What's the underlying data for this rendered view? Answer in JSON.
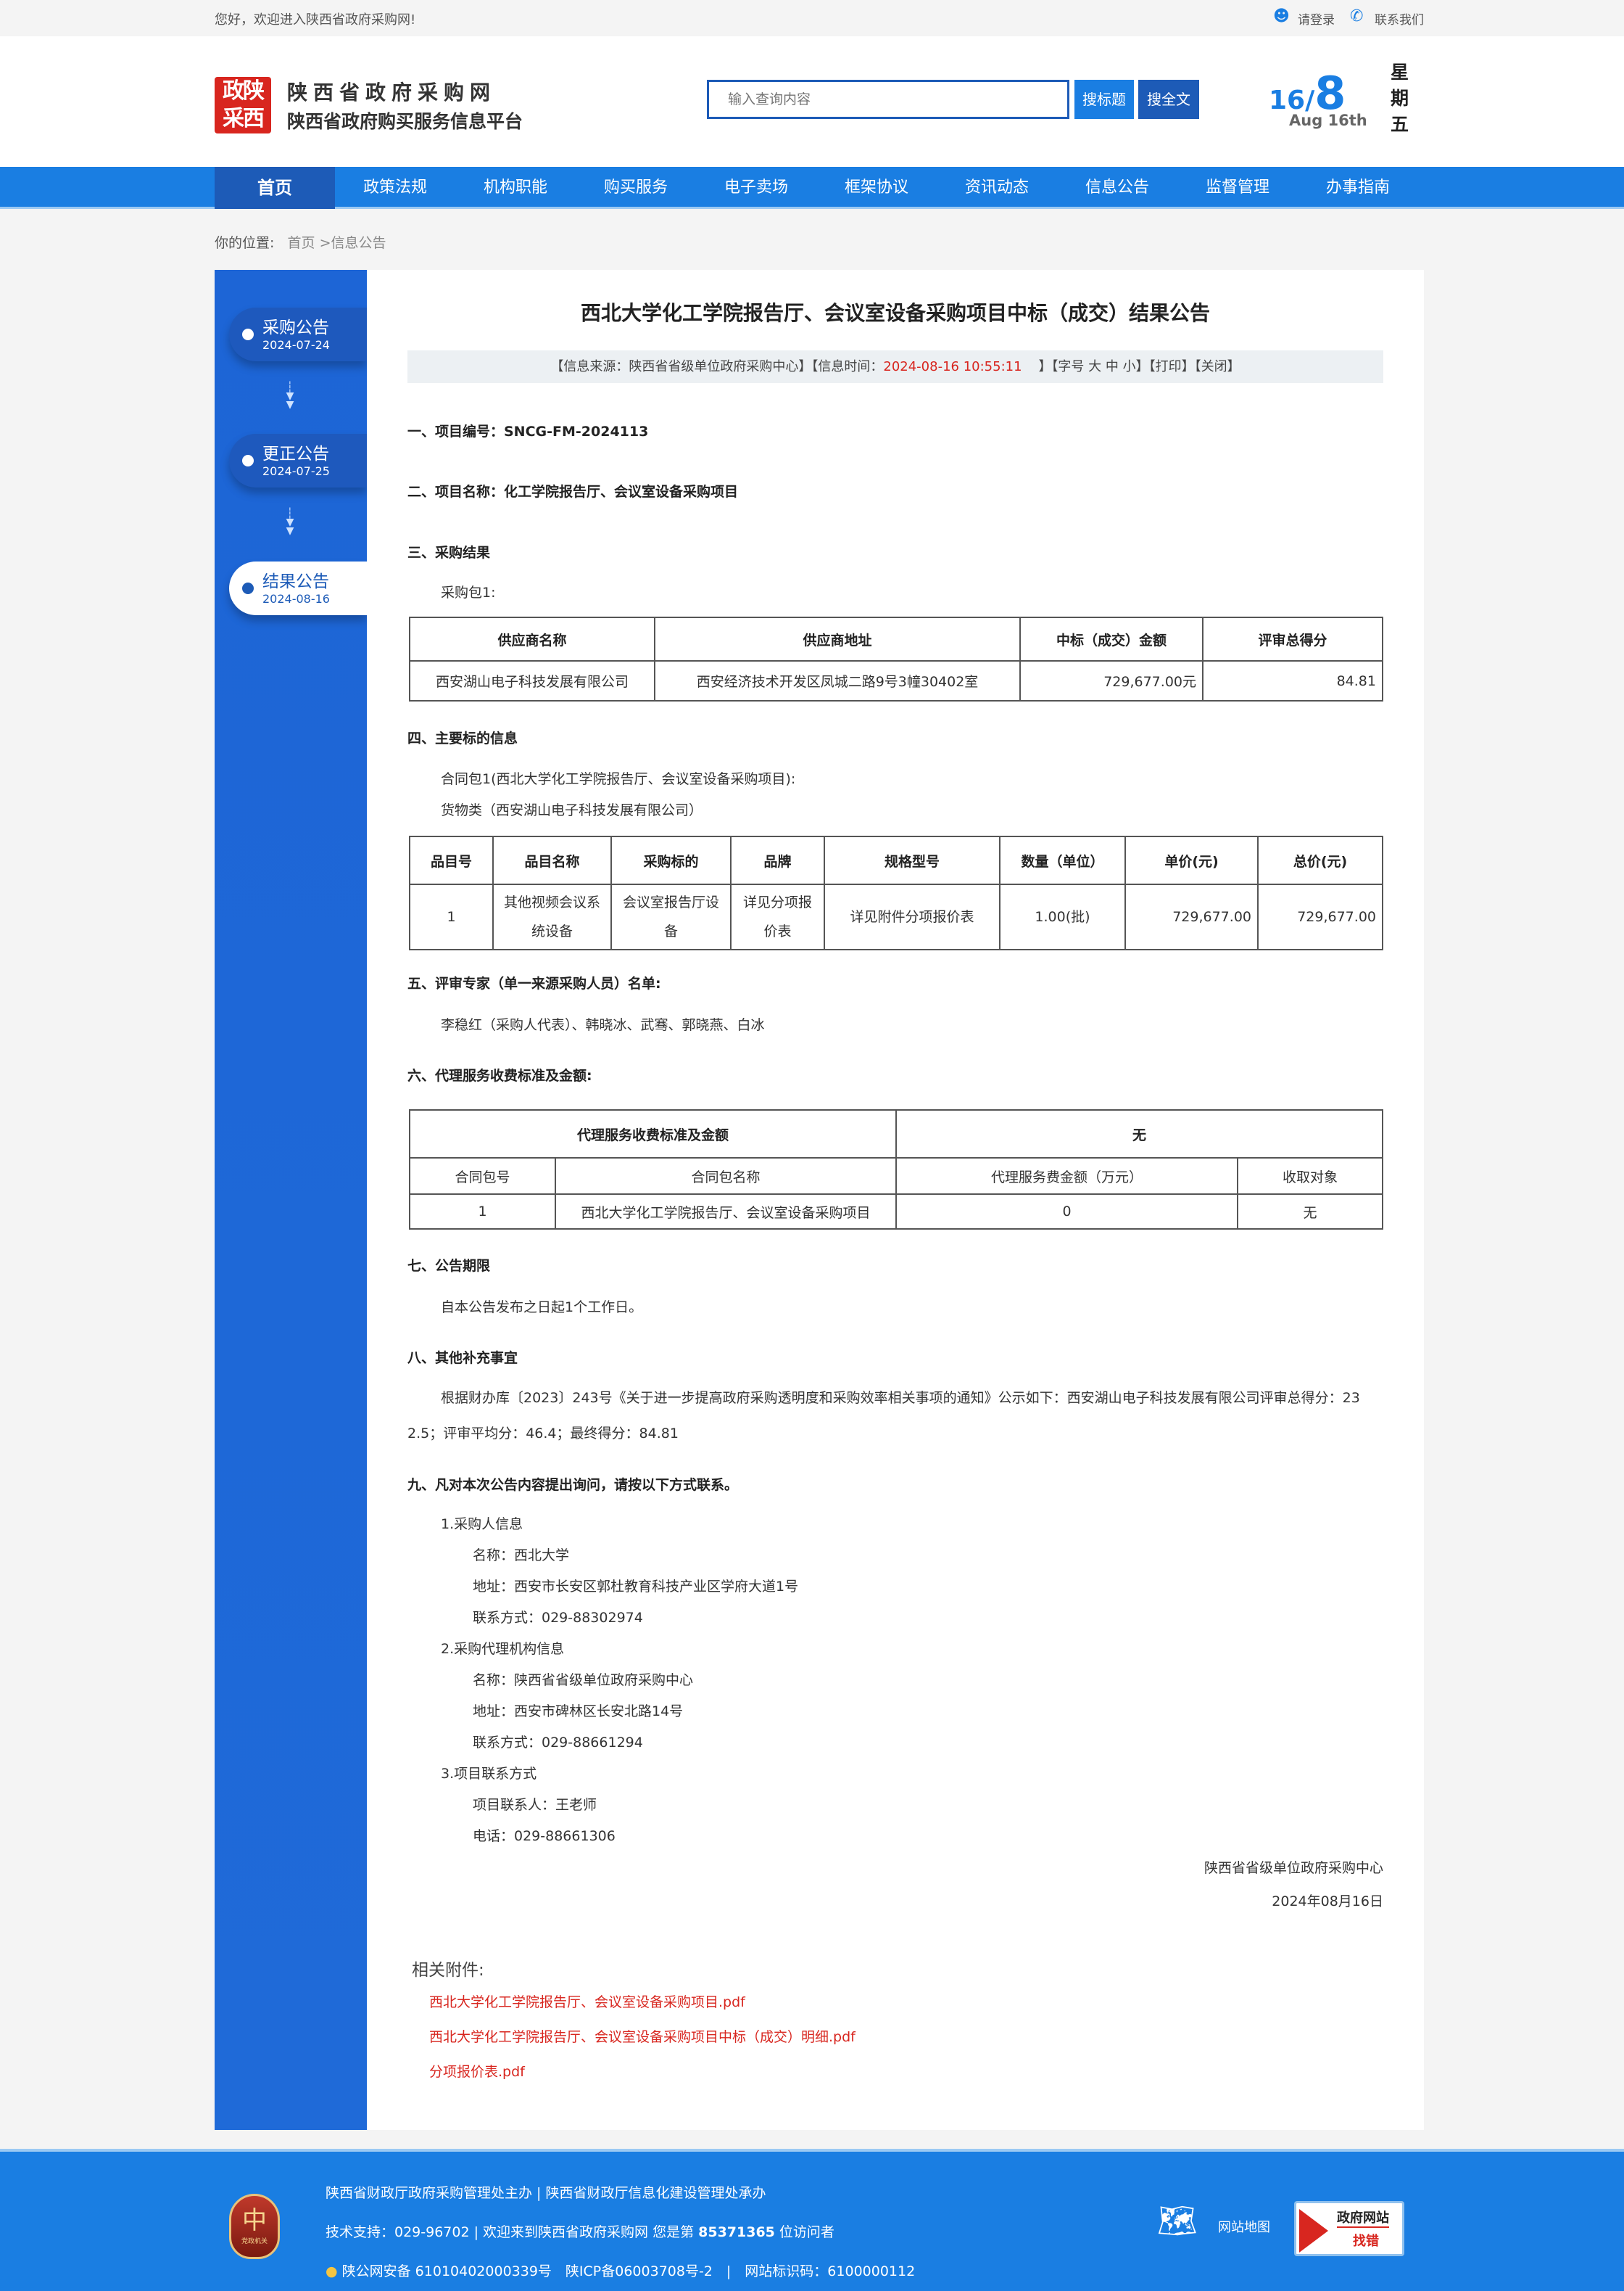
{
  "topbar": {
    "welcome": "您好，欢迎进入陕西省政府采购网!",
    "login": "请登录",
    "contact": "联系我们"
  },
  "header": {
    "logo_chars": "政陕采西",
    "site_name": "陕西省政府采购网",
    "platform": "陕西省政府购买服务信息平台",
    "search_placeholder": "输入查询内容",
    "search_title_btn": "搜标题",
    "search_full_btn": "搜全文",
    "date_day": "16",
    "date_month": "8",
    "date_en": "Aug 16th",
    "weekday": [
      "星",
      "期",
      "五"
    ]
  },
  "colors": {
    "primary": "#1a7ee2",
    "dark": "#1d5bb7",
    "red": "#d8261f"
  },
  "nav": [
    "首页",
    "政策法规",
    "机构职能",
    "购买服务",
    "电子卖场",
    "框架协议",
    "资讯动态",
    "信息公告",
    "监督管理",
    "办事指南"
  ],
  "breadcrumb": {
    "label": "你的位置:",
    "home": "首页",
    "sep": ">",
    "current": "信息公告"
  },
  "sidebar": [
    {
      "title": "采购公告",
      "date": "2024-07-24"
    },
    {
      "title": "更正公告",
      "date": "2024-07-25"
    },
    {
      "title": "结果公告",
      "date": "2024-08-16",
      "active": true
    }
  ],
  "article": {
    "title": "西北大学化工学院报告厅、会议室设备采购项目中标（成交）结果公告",
    "info": {
      "source": "【信息来源：陕西省省级单位政府采购中心】【信息时间：",
      "time": "2024-08-16 10:55:11",
      "font": "】【字号 大 中 小】",
      "print": "【打印】",
      "close": "【关闭】"
    },
    "s1": "一、项目编号：SNCG-FM-2024113",
    "s2": "二、项目名称：化工学院报告厅、会议室设备采购项目",
    "s3": "三、采购结果",
    "pkg": "采购包1:",
    "t1": {
      "headers": [
        "供应商名称",
        "供应商地址",
        "中标（成交）金额",
        "评审总得分"
      ],
      "row": [
        "西安湖山电子科技发展有限公司",
        "西安经济技术开发区凤城二路9号3幢30402室",
        "729,677.00元",
        "84.81"
      ]
    },
    "s4": "四、主要标的信息",
    "contract": "合同包1(西北大学化工学院报告厅、会议室设备采购项目):",
    "goods": "货物类（西安湖山电子科技发展有限公司）",
    "t2": {
      "headers": [
        "品目号",
        "品目名称",
        "采购标的",
        "品牌",
        "规格型号",
        "数量（单位）",
        "单价(元)",
        "总价(元)"
      ],
      "row": [
        "1",
        "其他视频会议系统设备",
        "会议室报告厅设备",
        "详见分项报价表",
        "详见附件分项报价表",
        "1.00(批)",
        "729,677.00",
        "729,677.00"
      ]
    },
    "s5": "五、评审专家（单一来源采购人员）名单:",
    "experts": "李稳红（采购人代表）、韩晓冰、武骞、郭晓燕、白冰",
    "s6": "六、代理服务收费标准及金额:",
    "t3": {
      "top": [
        "代理服务收费标准及金额",
        "无"
      ],
      "headers": [
        "合同包号",
        "合同包名称",
        "代理服务费金额（万元）",
        "收取对象"
      ],
      "row": [
        "1",
        "西北大学化工学院报告厅、会议室设备采购项目",
        "0",
        "无"
      ]
    },
    "s7": "七、公告期限",
    "period": "自本公告发布之日起1个工作日。",
    "s8": "八、其他补充事宜",
    "supp1": "根据财办库〔2023〕243号《关于进一步提高政府采购透明度和采购效率相关事项的通知》公示如下：西安湖山电子科技发展有限公司评审总得分：23",
    "supp2": "2.5；评审平均分：46.4；最终得分：84.81",
    "s9": "九、凡对本次公告内容提出询问，请按以下方式联系。",
    "contacts": [
      "1.采购人信息",
      "名称：西北大学",
      "地址：西安市长安区郭杜教育科技产业区学府大道1号",
      "联系方式：029-88302974",
      "2.采购代理机构信息",
      "名称：陕西省省级单位政府采购中心",
      "地址：西安市碑林区长安北路14号",
      "联系方式：029-88661294",
      "3.项目联系方式",
      "项目联系人：王老师",
      "电话：029-88661306"
    ],
    "sign": "陕西省省级单位政府采购中心",
    "sign_date": "2024年08月16日",
    "attach_label": "相关附件:",
    "attachments": [
      "西北大学化工学院报告厅、会议室设备采购项目.pdf",
      "西北大学化工学院报告厅、会议室设备采购项目中标（成交）明细.pdf",
      "分项报价表.pdf"
    ]
  },
  "footer": {
    "line1": "陕西省财政厅政府采购管理处主办 | 陕西省财政厅信息化建设管理处承办",
    "line2a": "技术支持：029-96702 | 欢迎来到陕西省政府采购网 您是第 ",
    "visitors": "85371365",
    "line2b": " 位访问者",
    "line3": "陕公网安备 61010402000339号　陕ICP备06003708号-2　|　网站标识码：6100000112",
    "sitemap": "网站地图",
    "badge_top": "政府网站",
    "badge_bottom": "找错",
    "emblem_text": "党政机关"
  }
}
